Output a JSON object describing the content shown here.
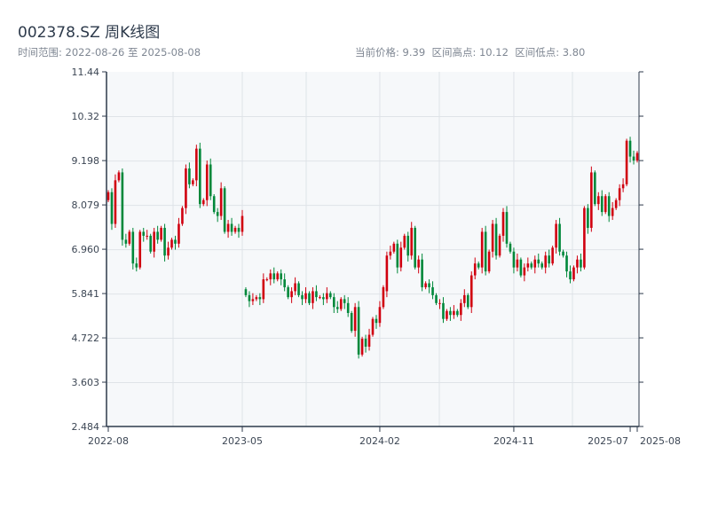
{
  "header": {
    "title": "002378.SZ 周K线图",
    "range_text": "时间范围: 2022-08-26 至 2025-08-08",
    "stats_text": "当前价格: 9.39  区间高点: 10.12  区间低点: 3.80"
  },
  "chart_data": {
    "type": "candlestick",
    "title": "002378.SZ 周K线图",
    "xlabel": "",
    "ylabel": "",
    "ylim": [
      2.484,
      11.44
    ],
    "yticks": [
      "2.484",
      "3.603",
      "4.722",
      "5.841",
      "6.960",
      "8.079",
      "9.198",
      "10.32",
      "11.44"
    ],
    "xticks": [
      {
        "label": "2022-08",
        "index": 0
      },
      {
        "label": "2023-05",
        "index": 38
      },
      {
        "label": "2024-02",
        "index": 77
      },
      {
        "label": "2024-11",
        "index": 115
      },
      {
        "label": "2025-07",
        "index": 148
      },
      {
        "label": "2025-08",
        "index": 150
      }
    ],
    "grid": true,
    "colors": {
      "up": "#d0000f",
      "down": "#00883a",
      "background": "#f6f8fa",
      "axis": "#2d3a4b",
      "grid": "#dfe3e8"
    },
    "first_open": 8.2,
    "closes": [
      8.4,
      7.6,
      8.7,
      8.9,
      7.2,
      7.1,
      7.4,
      6.6,
      6.5,
      7.4,
      7.3,
      7.3,
      6.9,
      7.4,
      7.2,
      7.5,
      6.8,
      7.0,
      7.2,
      7.1,
      7.6,
      8.0,
      9.0,
      8.6,
      8.7,
      9.5,
      8.1,
      8.2,
      9.1,
      8.3,
      7.9,
      7.8,
      8.5,
      7.4,
      7.6,
      7.4,
      7.5,
      7.4,
      7.8,
      5.8,
      5.65,
      5.7,
      5.75,
      5.7,
      6.2,
      6.2,
      6.35,
      6.2,
      6.35,
      6.2,
      6.0,
      5.75,
      5.9,
      6.1,
      5.8,
      5.7,
      5.85,
      5.6,
      5.9,
      5.75,
      5.75,
      5.7,
      5.85,
      5.75,
      5.5,
      5.45,
      5.7,
      5.6,
      5.35,
      4.9,
      5.5,
      4.3,
      4.7,
      4.5,
      4.8,
      5.2,
      5.1,
      5.5,
      6.0,
      6.8,
      6.9,
      7.1,
      6.5,
      7.0,
      7.3,
      6.8,
      7.5,
      6.5,
      6.7,
      6.0,
      6.1,
      6.0,
      5.8,
      5.6,
      5.6,
      5.2,
      5.4,
      5.3,
      5.4,
      5.3,
      5.6,
      5.8,
      5.5,
      6.3,
      6.6,
      6.5,
      7.4,
      6.4,
      6.9,
      7.6,
      6.8,
      7.3,
      7.9,
      7.1,
      6.9,
      6.5,
      6.7,
      6.3,
      6.5,
      6.6,
      6.5,
      6.7,
      6.6,
      6.5,
      6.8,
      6.6,
      7.0,
      7.6,
      6.9,
      6.8,
      6.4,
      6.2,
      6.5,
      6.7,
      6.5,
      8.0,
      7.5,
      8.9,
      8.1,
      8.3,
      7.9,
      8.3,
      7.8,
      8.0,
      8.2,
      8.5,
      8.6,
      9.7,
      9.3,
      9.2,
      9.39
    ]
  }
}
